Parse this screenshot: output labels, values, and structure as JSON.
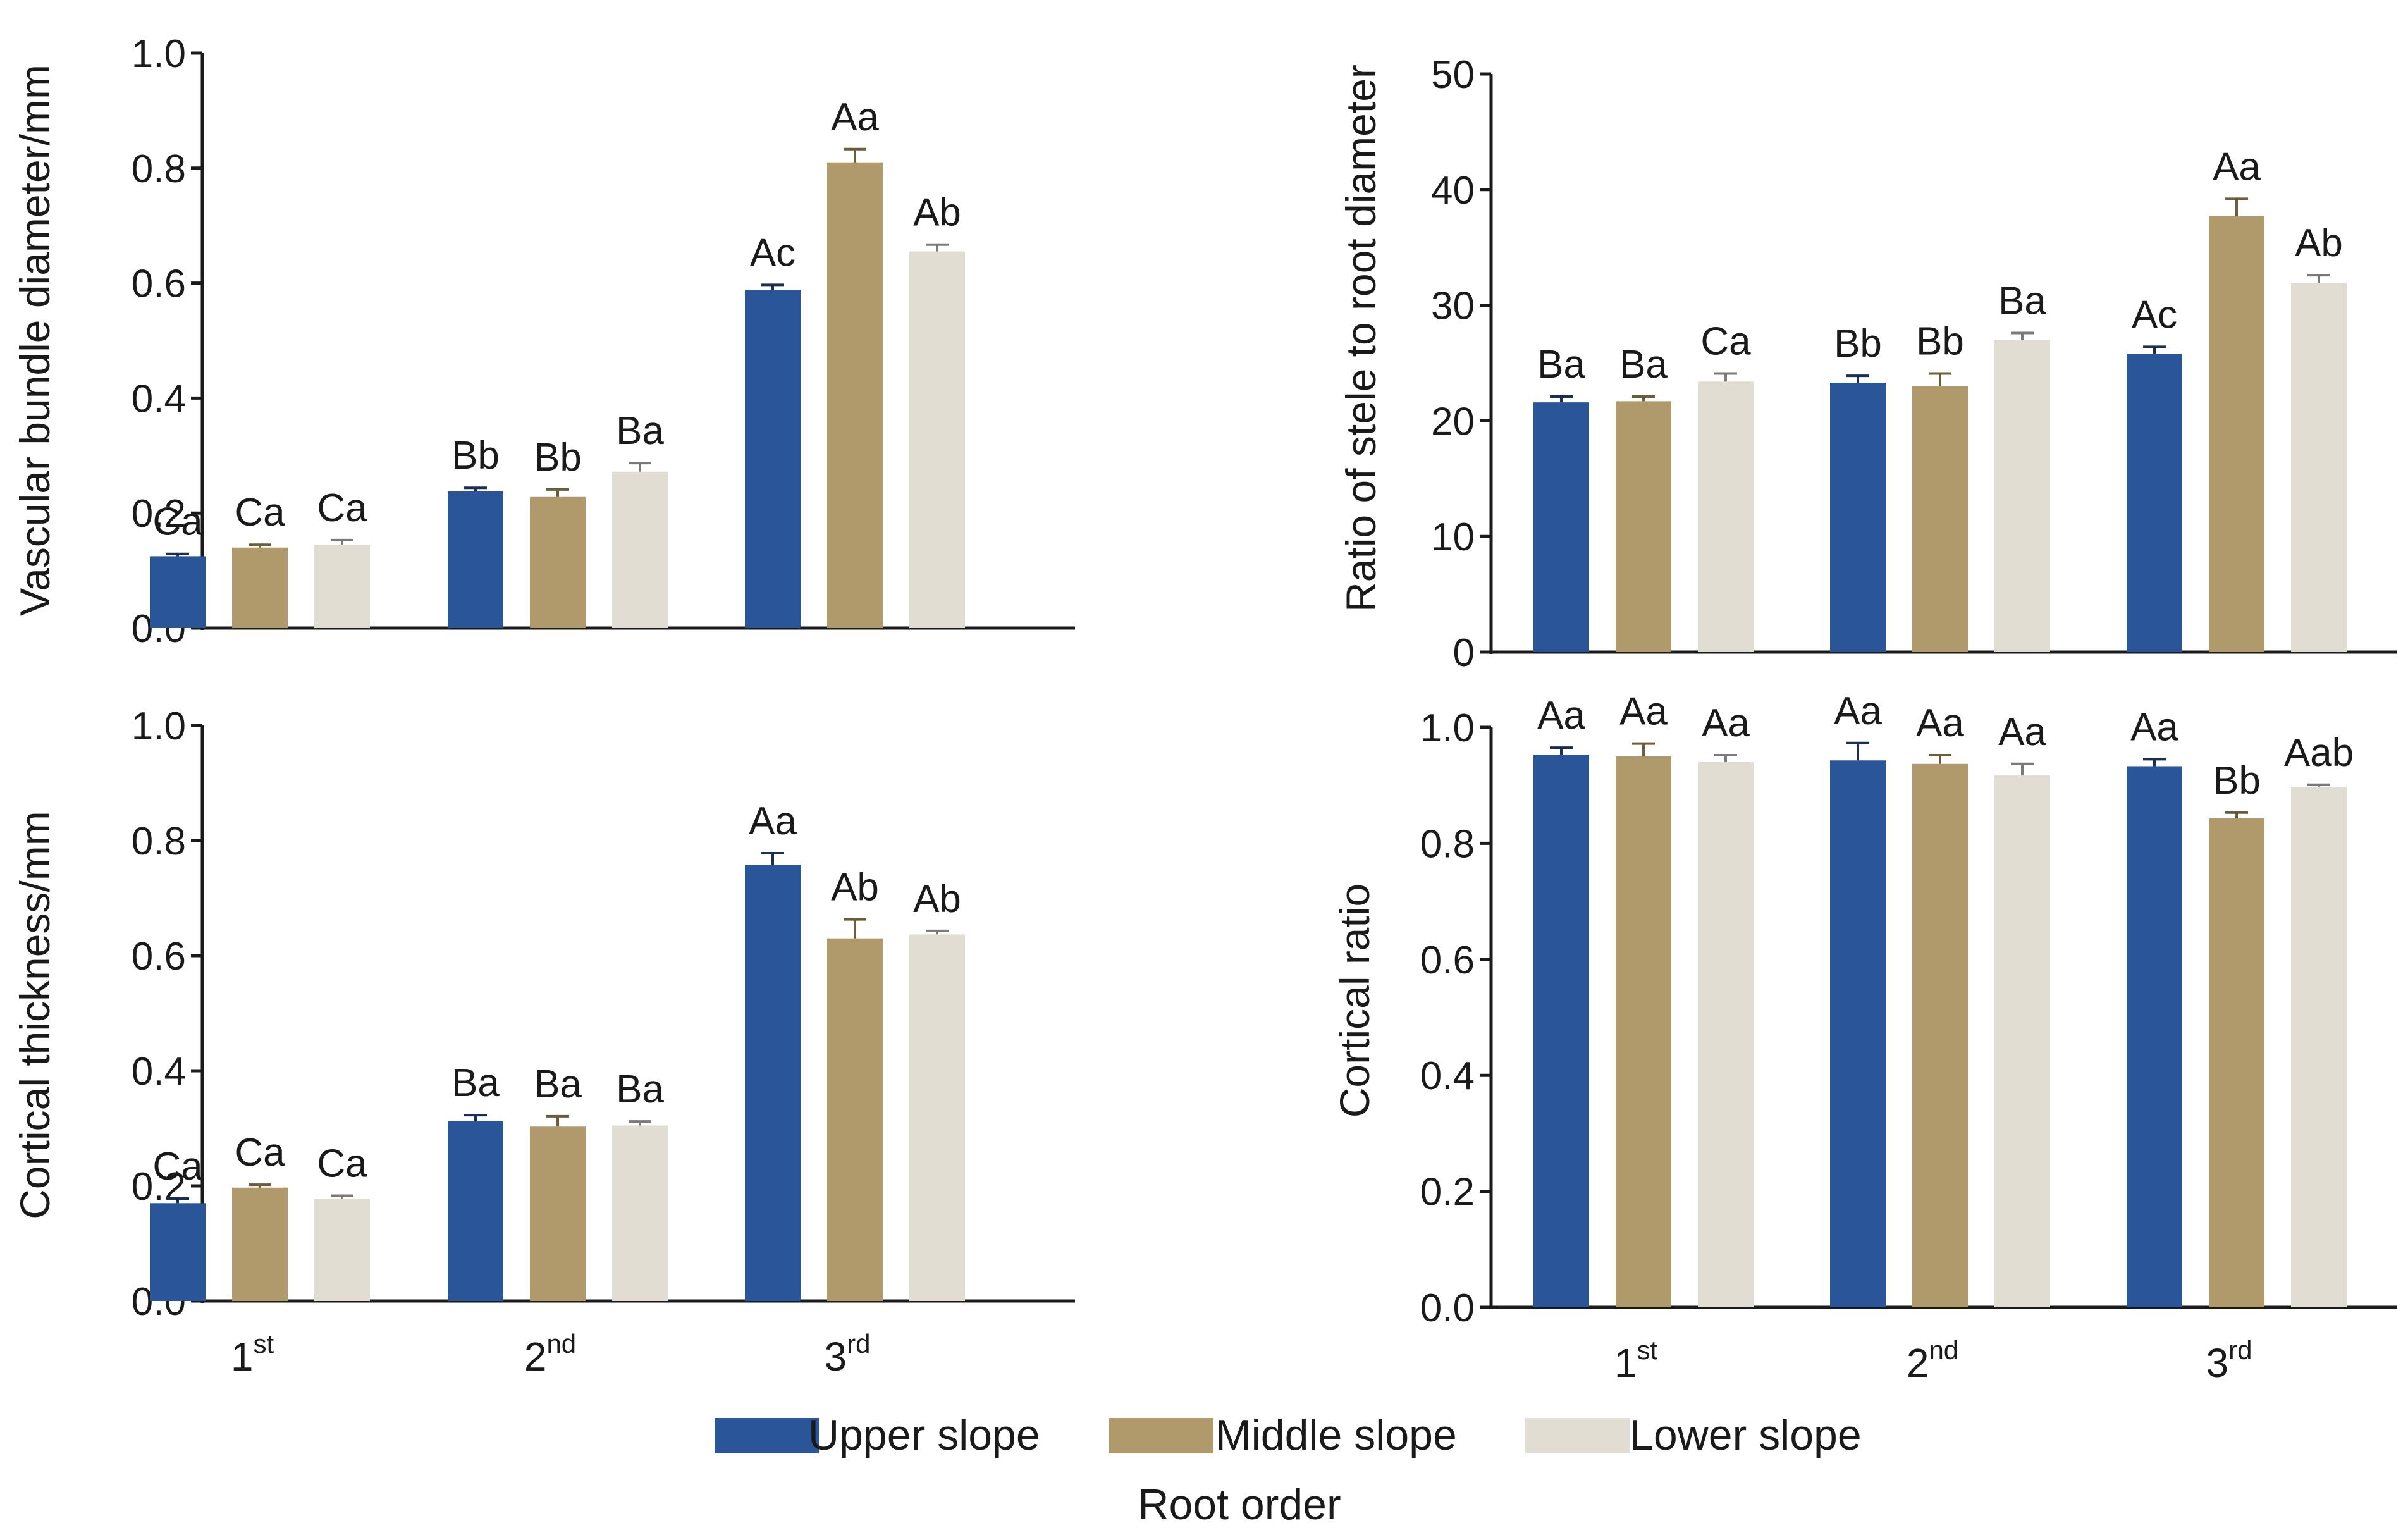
{
  "colors": {
    "upper": "#2a5599",
    "middle": "#b09a6c",
    "lower": "#e2ddd3",
    "upper_err": "#1b2f55",
    "middle_err": "#6b5c3a",
    "lower_err": "#7a7a7a",
    "axis": "#1a1a1a"
  },
  "legend": {
    "items": [
      {
        "key": "upper",
        "label": "Upper slope"
      },
      {
        "key": "middle",
        "label": "Middle slope"
      },
      {
        "key": "lower",
        "label": "Lower slope"
      }
    ]
  },
  "x_axis": {
    "label": "Root order",
    "categories": [
      {
        "base": "1",
        "sup": "st"
      },
      {
        "base": "2",
        "sup": "nd"
      },
      {
        "base": "3",
        "sup": "rd"
      }
    ]
  },
  "chart_data": [
    {
      "type": "bar",
      "id": "vascular",
      "ylabel": "Vascular bundle diameter/mm",
      "ylim": [
        0,
        1.0
      ],
      "yticks": [
        "0.0",
        "0.2",
        "0.4",
        "0.6",
        "0.8",
        "1.0"
      ],
      "categories": [
        "1st",
        "2nd",
        "3rd"
      ],
      "series": [
        {
          "name": "Upper slope",
          "key": "upper",
          "values": [
            0.125,
            0.238,
            0.588
          ],
          "errors": [
            0.004,
            0.006,
            0.009
          ],
          "labels": [
            "Ca",
            "Bb",
            "Ac"
          ]
        },
        {
          "name": "Middle slope",
          "key": "middle",
          "values": [
            0.14,
            0.228,
            0.81
          ],
          "errors": [
            0.005,
            0.013,
            0.023
          ],
          "labels": [
            "Ca",
            "Bb",
            "Aa"
          ]
        },
        {
          "name": "Lower slope",
          "key": "lower",
          "values": [
            0.145,
            0.272,
            0.655
          ],
          "errors": [
            0.008,
            0.015,
            0.012
          ],
          "labels": [
            "Ca",
            "Ba",
            "Ab"
          ]
        }
      ]
    },
    {
      "type": "bar",
      "id": "stele",
      "ylabel": "Ratio of stele to root diameter",
      "ylim": [
        0,
        50
      ],
      "yticks": [
        "0",
        "10",
        "20",
        "30",
        "40",
        "50"
      ],
      "categories": [
        "1st",
        "2nd",
        "3rd"
      ],
      "series": [
        {
          "name": "Upper slope",
          "key": "upper",
          "values": [
            21.6,
            23.3,
            25.8
          ],
          "errors": [
            0.5,
            0.6,
            0.6
          ],
          "labels": [
            "Ba",
            "Bb",
            "Ac"
          ]
        },
        {
          "name": "Middle slope",
          "key": "middle",
          "values": [
            21.7,
            23.0,
            37.7
          ],
          "errors": [
            0.4,
            1.1,
            1.5
          ],
          "labels": [
            "Ba",
            "Bb",
            "Aa"
          ]
        },
        {
          "name": "Lower slope",
          "key": "lower",
          "values": [
            23.4,
            27.0,
            31.9
          ],
          "errors": [
            0.7,
            0.6,
            0.7
          ],
          "labels": [
            "Ca",
            "Ba",
            "Ab"
          ]
        }
      ]
    },
    {
      "type": "bar",
      "id": "cortical_thickness",
      "ylabel": "Cortical thickness/mm",
      "ylim": [
        0,
        1.0
      ],
      "yticks": [
        "0.0",
        "0.2",
        "0.4",
        "0.6",
        "0.8",
        "1.0"
      ],
      "categories": [
        "1st",
        "2nd",
        "3rd"
      ],
      "series": [
        {
          "name": "Upper slope",
          "key": "upper",
          "values": [
            0.17,
            0.313,
            0.758
          ],
          "errors": [
            0.008,
            0.01,
            0.02
          ],
          "labels": [
            "Ca",
            "Ba",
            "Aa"
          ]
        },
        {
          "name": "Middle slope",
          "key": "middle",
          "values": [
            0.197,
            0.303,
            0.63
          ],
          "errors": [
            0.005,
            0.018,
            0.033
          ],
          "labels": [
            "Ca",
            "Ba",
            "Ab"
          ]
        },
        {
          "name": "Lower slope",
          "key": "lower",
          "values": [
            0.178,
            0.305,
            0.637
          ],
          "errors": [
            0.005,
            0.007,
            0.006
          ],
          "labels": [
            "Ca",
            "Ba",
            "Ab"
          ]
        }
      ]
    },
    {
      "type": "bar",
      "id": "cortical_ratio",
      "ylabel": "Cortical ratio",
      "ylim": [
        0,
        1.0
      ],
      "yticks": [
        "0.0",
        "0.2",
        "0.4",
        "0.6",
        "0.8",
        "1.0"
      ],
      "categories": [
        "1st",
        "2nd",
        "3rd"
      ],
      "series": [
        {
          "name": "Upper slope",
          "key": "upper",
          "values": [
            0.953,
            0.943,
            0.933
          ],
          "errors": [
            0.012,
            0.03,
            0.012
          ],
          "labels": [
            "Aa",
            "Aa",
            "Aa"
          ]
        },
        {
          "name": "Middle slope",
          "key": "middle",
          "values": [
            0.95,
            0.937,
            0.843
          ],
          "errors": [
            0.022,
            0.015,
            0.01
          ],
          "labels": [
            "Aa",
            "Aa",
            "Bb"
          ]
        },
        {
          "name": "Lower slope",
          "key": "lower",
          "values": [
            0.94,
            0.917,
            0.897
          ],
          "errors": [
            0.012,
            0.02,
            0.004
          ],
          "labels": [
            "Aa",
            "Aa",
            "Aab"
          ]
        }
      ]
    }
  ]
}
